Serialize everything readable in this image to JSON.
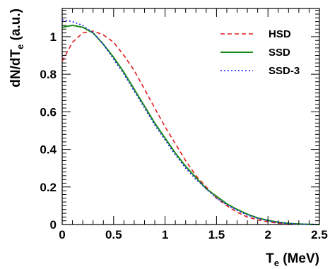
{
  "chart_data": {
    "type": "line",
    "xlim": [
      0,
      2.5
    ],
    "ylim": [
      0,
      1.15
    ],
    "x_ticks": [
      {
        "value": 0,
        "label": "0"
      },
      {
        "value": 0.5,
        "label": "0.5"
      },
      {
        "value": 1,
        "label": "1"
      },
      {
        "value": 1.5,
        "label": "1.5"
      },
      {
        "value": 2,
        "label": "2"
      },
      {
        "value": 2.5,
        "label": "2.5"
      }
    ],
    "y_ticks": [
      {
        "value": 0,
        "label": "0"
      },
      {
        "value": 0.2,
        "label": "0.2"
      },
      {
        "value": 0.4,
        "label": "0.4"
      },
      {
        "value": 0.6,
        "label": "0.6"
      },
      {
        "value": 0.8,
        "label": "0.8"
      },
      {
        "value": 1,
        "label": "1"
      }
    ],
    "xlabel": {
      "main": "T",
      "sub": "e",
      "rest": " (MeV)"
    },
    "ylabel": {
      "main": "dN/dT",
      "sub": "e",
      "rest": " (a.u.)"
    },
    "legend_position": "top-right",
    "grid": false,
    "x": [
      0,
      0.1,
      0.2,
      0.3,
      0.4,
      0.5,
      0.6,
      0.7,
      0.8,
      0.9,
      1.0,
      1.1,
      1.2,
      1.3,
      1.4,
      1.5,
      1.6,
      1.7,
      1.8,
      1.9,
      2.0,
      2.1,
      2.2,
      2.3,
      2.4,
      2.5
    ],
    "series": [
      {
        "name": "HSD",
        "color": "#e41a1c",
        "style": "dashed",
        "values": [
          0.87,
          0.97,
          1.02,
          1.03,
          1.01,
          0.97,
          0.9,
          0.82,
          0.72,
          0.62,
          0.52,
          0.43,
          0.34,
          0.26,
          0.2,
          0.14,
          0.1,
          0.065,
          0.04,
          0.025,
          0.014,
          0.007,
          0.003,
          0.001,
          0.0,
          0.0
        ]
      },
      {
        "name": "SSD",
        "color": "#1a8a1a",
        "style": "solid",
        "values": [
          1.05,
          1.06,
          1.05,
          1.02,
          0.96,
          0.89,
          0.81,
          0.72,
          0.63,
          0.54,
          0.46,
          0.38,
          0.31,
          0.25,
          0.19,
          0.15,
          0.11,
          0.08,
          0.055,
          0.035,
          0.022,
          0.012,
          0.006,
          0.003,
          0.001,
          0.0
        ]
      },
      {
        "name": "SSD-3",
        "color": "#1a1aff",
        "style": "dotted",
        "values": [
          1.09,
          1.08,
          1.06,
          1.02,
          0.96,
          0.88,
          0.8,
          0.71,
          0.62,
          0.53,
          0.45,
          0.37,
          0.3,
          0.24,
          0.19,
          0.14,
          0.105,
          0.075,
          0.05,
          0.033,
          0.02,
          0.011,
          0.005,
          0.002,
          0.001,
          0.0
        ]
      }
    ]
  }
}
